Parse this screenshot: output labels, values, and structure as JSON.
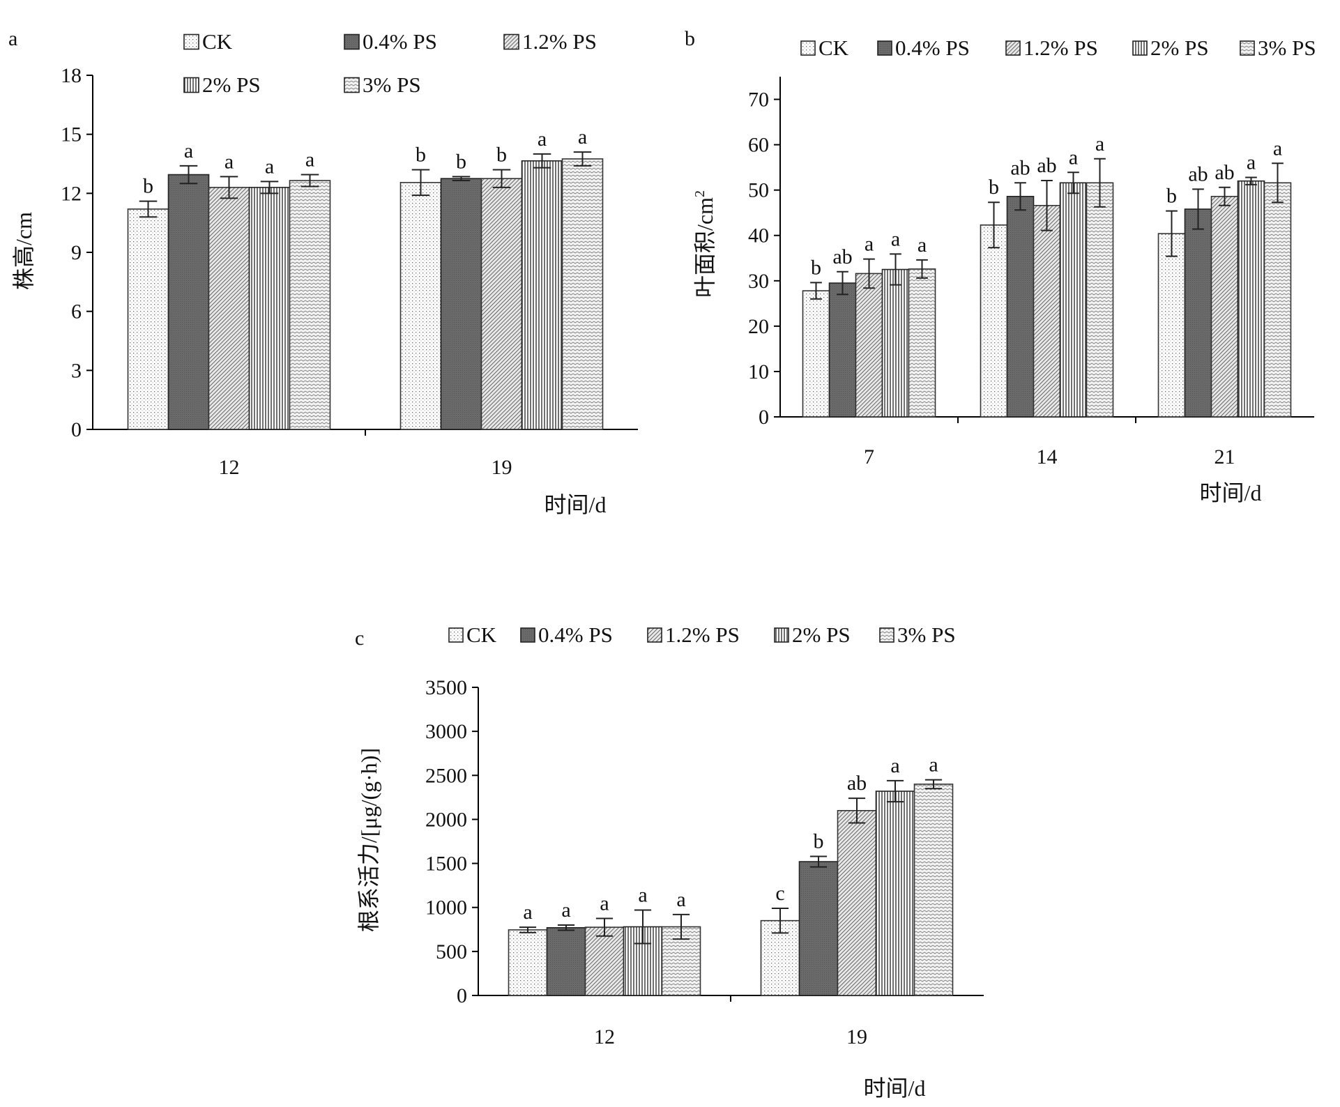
{
  "chart_data": [
    {
      "panel": "a",
      "type": "bar",
      "xlabel": "时间/d",
      "ylabel": "株高/cm",
      "ylim": [
        0,
        18
      ],
      "yticks": [
        0,
        3,
        6,
        9,
        12,
        15,
        18
      ],
      "categories": [
        "12",
        "19"
      ],
      "series": [
        {
          "name": "CK",
          "values": [
            11.2,
            12.55
          ],
          "errors": [
            0.4,
            0.65
          ],
          "letters": [
            "b",
            "b"
          ]
        },
        {
          "name": "0.4% PS",
          "values": [
            12.95,
            12.75
          ],
          "errors": [
            0.45,
            0.1
          ],
          "letters": [
            "a",
            "b"
          ]
        },
        {
          "name": "1.2% PS",
          "values": [
            12.3,
            12.75
          ],
          "errors": [
            0.55,
            0.45
          ],
          "letters": [
            "a",
            "b"
          ]
        },
        {
          "name": "2% PS",
          "values": [
            12.3,
            13.65
          ],
          "errors": [
            0.3,
            0.35
          ],
          "letters": [
            "a",
            "a"
          ]
        },
        {
          "name": "3% PS",
          "values": [
            12.65,
            13.75
          ],
          "errors": [
            0.3,
            0.35
          ],
          "letters": [
            "a",
            "a"
          ]
        }
      ],
      "legend": "top, two rows",
      "grid": false
    },
    {
      "panel": "b",
      "type": "bar",
      "xlabel": "时间/d",
      "ylabel": "叶面积/cm",
      "ylabel_sup": "2",
      "ylim": [
        0,
        75
      ],
      "yticks": [
        0,
        10,
        20,
        30,
        40,
        50,
        60,
        70
      ],
      "categories": [
        "7",
        "14",
        "21"
      ],
      "series": [
        {
          "name": "CK",
          "values": [
            27.8,
            42.3,
            40.4
          ],
          "errors": [
            1.8,
            5.0,
            5.0
          ],
          "letters": [
            "b",
            "b",
            "b"
          ]
        },
        {
          "name": "0.4% PS",
          "values": [
            29.5,
            48.6,
            45.8
          ],
          "errors": [
            2.5,
            3.0,
            4.4
          ],
          "letters": [
            "ab",
            "ab",
            "ab"
          ]
        },
        {
          "name": "1.2% PS",
          "values": [
            31.6,
            46.6,
            48.6
          ],
          "errors": [
            3.2,
            5.5,
            2.0
          ],
          "letters": [
            "a",
            "ab",
            "ab"
          ]
        },
        {
          "name": "2% PS",
          "values": [
            32.5,
            51.6,
            52.0
          ],
          "errors": [
            3.4,
            2.3,
            0.8
          ],
          "letters": [
            "a",
            "a",
            "a"
          ]
        },
        {
          "name": "3% PS",
          "values": [
            32.6,
            51.6,
            51.6
          ],
          "errors": [
            2.0,
            5.3,
            4.3
          ],
          "letters": [
            "a",
            "a",
            "a"
          ]
        }
      ],
      "legend": "top, one row",
      "grid": false
    },
    {
      "panel": "c",
      "type": "bar",
      "xlabel": "时间/d",
      "ylabel": "根系活力/[μg/(g·h)]",
      "ylim": [
        0,
        3500
      ],
      "yticks": [
        0,
        500,
        1000,
        1500,
        2000,
        2500,
        3000,
        3500
      ],
      "categories": [
        "12",
        "19"
      ],
      "series": [
        {
          "name": "CK",
          "values": [
            745,
            850
          ],
          "errors": [
            30,
            140
          ],
          "letters": [
            "a",
            "c"
          ]
        },
        {
          "name": "0.4% PS",
          "values": [
            770,
            1520
          ],
          "errors": [
            30,
            60
          ],
          "letters": [
            "a",
            "b"
          ]
        },
        {
          "name": "1.2% PS",
          "values": [
            775,
            2100
          ],
          "errors": [
            100,
            140
          ],
          "letters": [
            "a",
            "ab"
          ]
        },
        {
          "name": "2% PS",
          "values": [
            780,
            2320
          ],
          "errors": [
            190,
            120
          ],
          "letters": [
            "a",
            "a"
          ]
        },
        {
          "name": "3% PS",
          "values": [
            780,
            2400
          ],
          "errors": [
            140,
            50
          ],
          "letters": [
            "a",
            "a"
          ]
        }
      ],
      "legend": "top, one row",
      "grid": false
    }
  ]
}
